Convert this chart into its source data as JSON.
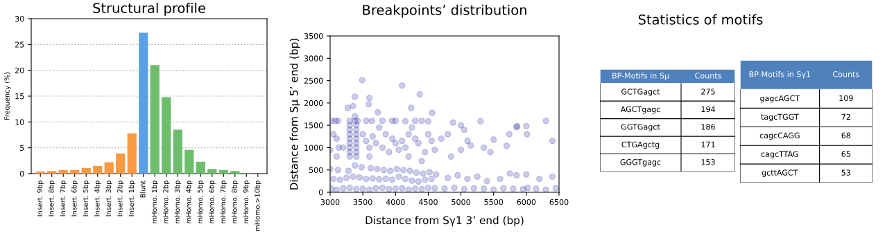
{
  "chart_data": [
    {
      "type": "bar",
      "title": "Structural profile",
      "ylabel": "Frequency (%)",
      "categories": [
        "Insert. 9bp",
        "Insert. 8bp",
        "Insert. 7bp",
        "Insert. 6bp",
        "Insert. 5bp",
        "Insert. 4bp",
        "Insert. 3bp",
        "Insert. 2bp",
        "Insert. 1bp",
        "Blunt",
        "mHomo. 1bp",
        "mHomo. 2bp",
        "mHomo. 3bp",
        "mHomo. 4bp",
        "mHomo. 5bp",
        "mHomo. 6bp",
        "mHomo. 7bp",
        "mHomo. 8bp",
        "mHomo. 9bp",
        "mHomo.>10bp"
      ],
      "values": [
        0.4,
        0.5,
        0.7,
        0.7,
        1.1,
        1.5,
        2.2,
        3.9,
        7.8,
        27.3,
        21.0,
        14.8,
        8.5,
        4.6,
        2.3,
        0.9,
        0.7,
        0.5,
        0.1,
        0.0
      ],
      "colors": [
        "#f89a44",
        "#f89a44",
        "#f89a44",
        "#f89a44",
        "#f89a44",
        "#f89a44",
        "#f89a44",
        "#f89a44",
        "#f89a44",
        "#5aa0e6",
        "#6cbd6c",
        "#6cbd6c",
        "#6cbd6c",
        "#6cbd6c",
        "#6cbd6c",
        "#6cbd6c",
        "#6cbd6c",
        "#6cbd6c",
        "#6cbd6c",
        "#6cbd6c"
      ],
      "ylim": [
        0,
        30
      ],
      "yticks": [
        0,
        5,
        10,
        15,
        20,
        25,
        30
      ],
      "grid": "y"
    },
    {
      "type": "scatter",
      "title": "Breakpoints’ distribution",
      "xlabel": "Distance from Sγ1 3’ end (bp)",
      "ylabel": "Distance from Sμ 5’ end (bp)",
      "marker": "circle",
      "series": [
        {
          "color": "#000096",
          "x": [
            3490,
            4100,
            4370,
            3380,
            3600,
            3270,
            3350,
            3590,
            4240,
            3730,
            4560,
            3380,
            3020,
            3080,
            3120,
            3300,
            3380,
            3420,
            3550,
            3640,
            3800,
            3950,
            4000,
            4150,
            4300,
            4400,
            4500,
            4880,
            5000,
            5300,
            5860,
            6000,
            6300,
            3300,
            3300,
            3300,
            3300,
            3300,
            3300,
            3300,
            3300,
            3400,
            3400,
            3400,
            3400,
            3400,
            3400,
            3400,
            3400,
            3050,
            3100,
            3130,
            3000,
            3200,
            3500,
            3550,
            3600,
            3650,
            3700,
            3750,
            3800,
            3850,
            3900,
            3950,
            4000,
            4050,
            4100,
            4150,
            4200,
            4250,
            4300,
            4350,
            4450,
            4500,
            4550,
            4600,
            4700,
            4800,
            5000,
            5050,
            5100,
            5150,
            5350,
            5500,
            5740,
            5700,
            5850,
            6010,
            6400,
            5450,
            4850,
            4400,
            3600,
            3100,
            4200,
            3020,
            3100,
            3200,
            3300,
            3400,
            3500,
            3600,
            3700,
            3800,
            3900,
            4000,
            4100,
            4200,
            4300,
            4400,
            4500,
            4600,
            3050,
            3150,
            3250,
            3350,
            3450,
            3550,
            3650,
            3750,
            3850,
            3950,
            4050,
            4150,
            4250,
            4350,
            4450,
            4550,
            3000,
            3120,
            3280,
            3380,
            3480,
            3620,
            3720,
            3820,
            3920,
            4020,
            4120,
            4220,
            4320,
            4420,
            4520,
            4620,
            4750,
            4900,
            5050,
            5200,
            5350,
            5500,
            5650,
            5800,
            5950,
            6020,
            6150,
            6300,
            6450,
            4800,
            4950,
            5100,
            5250,
            5400,
            5600,
            5750,
            5850,
            6000,
            6200,
            6400
          ],
          "values": [
            2510,
            2390,
            2190,
            2140,
            2110,
            1890,
            1930,
            1970,
            1890,
            1790,
            1780,
            1700,
            1600,
            1600,
            1600,
            1600,
            1600,
            1600,
            1600,
            1600,
            1600,
            1600,
            1600,
            1590,
            1600,
            1600,
            1590,
            1560,
            1500,
            1590,
            1480,
            1480,
            1600,
            1500,
            1400,
            1300,
            1200,
            1100,
            1000,
            900,
            800,
            1500,
            1400,
            1300,
            1200,
            1100,
            1000,
            900,
            800,
            1300,
            1200,
            1000,
            950,
            1000,
            1300,
            1150,
            1000,
            1250,
            1100,
            1450,
            1000,
            1300,
            900,
            1200,
            1100,
            950,
            1150,
            1000,
            1300,
            1450,
            1200,
            1100,
            900,
            1300,
            1150,
            950,
            1200,
            1300,
            950,
            1400,
            1150,
            1050,
            1000,
            1180,
            1300,
            1040,
            1460,
            1300,
            1150,
            900,
            800,
            700,
            800,
            800,
            800,
            80,
            60,
            90,
            100,
            70,
            80,
            60,
            90,
            100,
            70,
            80,
            90,
            60,
            80,
            70,
            100,
            90,
            300,
            280,
            320,
            350,
            330,
            300,
            310,
            290,
            300,
            280,
            350,
            300,
            260,
            240,
            280,
            300,
            520,
            500,
            480,
            600,
            560,
            540,
            520,
            500,
            480,
            520,
            500,
            480,
            440,
            420,
            450,
            400,
            80,
            100,
            70,
            90,
            80,
            60,
            90,
            80,
            70,
            100,
            80,
            60,
            90,
            320,
            380,
            300,
            350,
            250,
            300,
            420,
            380,
            400,
            300,
            350
          ]
        }
      ],
      "xlim": [
        3000,
        6500
      ],
      "xticks": [
        3000,
        3500,
        4000,
        4500,
        5000,
        5500,
        6000,
        6500
      ],
      "ylim": [
        0,
        3500
      ],
      "yticks": [
        0,
        500,
        1000,
        1500,
        2000,
        2500,
        3000,
        3500
      ]
    },
    {
      "type": "other",
      "title": "Statistics of motifs",
      "color": "#4f81bd",
      "annotations": [
        "BP-Motifs in Sμ",
        "Counts"
      ],
      "categories": [
        "GCTGagct",
        "AGCTgagc",
        "GGTGagct",
        "CTGAgctg",
        "GGGTgagc"
      ],
      "values": [
        275,
        194,
        186,
        171,
        153
      ],
      "data_labels": true
    },
    {
      "type": "other",
      "color": "#4f81bd",
      "annotations": [
        "BP-Motifs in Sγ1",
        "Counts"
      ],
      "categories": [
        "gagcAGCT",
        "tagcTGGT",
        "cagcCAGG",
        "cagcTTAG",
        "gcttAGCT"
      ],
      "values": [
        109,
        72,
        68,
        65,
        53
      ],
      "data_labels": true
    }
  ]
}
